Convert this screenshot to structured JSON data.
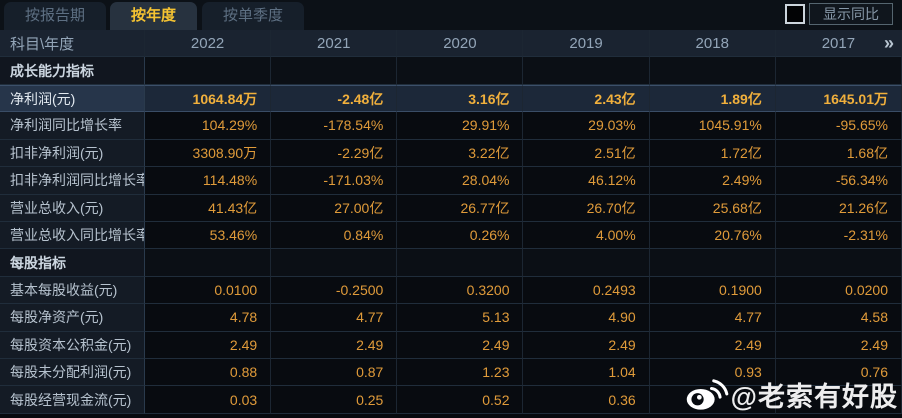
{
  "tabs": [
    {
      "label": "按报告期",
      "active": false
    },
    {
      "label": "按年度",
      "active": true
    },
    {
      "label": "按单季度",
      "active": false
    }
  ],
  "controls": {
    "show_yoy_label": "显示同比",
    "checkbox_checked": false
  },
  "table": {
    "corner_label": "科目\\年度",
    "years": [
      "2022",
      "2021",
      "2020",
      "2019",
      "2018",
      "2017"
    ],
    "more_years_icon": "»",
    "rows": [
      {
        "type": "section",
        "label": "成长能力指标"
      },
      {
        "type": "data",
        "highlight": true,
        "label": "净利润(元)",
        "values": [
          "1064.84万",
          "-2.48亿",
          "3.16亿",
          "2.43亿",
          "1.89亿",
          "1645.01万"
        ]
      },
      {
        "type": "data",
        "highlight": false,
        "label": "净利润同比增长率",
        "values": [
          "104.29%",
          "-178.54%",
          "29.91%",
          "29.03%",
          "1045.91%",
          "-95.65%"
        ]
      },
      {
        "type": "data",
        "highlight": false,
        "label": "扣非净利润(元)",
        "values": [
          "3308.90万",
          "-2.29亿",
          "3.22亿",
          "2.51亿",
          "1.72亿",
          "1.68亿"
        ]
      },
      {
        "type": "data",
        "highlight": false,
        "label": "扣非净利润同比增长率",
        "values": [
          "114.48%",
          "-171.03%",
          "28.04%",
          "46.12%",
          "2.49%",
          "-56.34%"
        ]
      },
      {
        "type": "data",
        "highlight": false,
        "label": "营业总收入(元)",
        "values": [
          "41.43亿",
          "27.00亿",
          "26.77亿",
          "26.70亿",
          "25.68亿",
          "21.26亿"
        ]
      },
      {
        "type": "data",
        "highlight": false,
        "label": "营业总收入同比增长率",
        "values": [
          "53.46%",
          "0.84%",
          "0.26%",
          "4.00%",
          "20.76%",
          "-2.31%"
        ]
      },
      {
        "type": "section",
        "label": "每股指标"
      },
      {
        "type": "data",
        "highlight": false,
        "label": "基本每股收益(元)",
        "values": [
          "0.0100",
          "-0.2500",
          "0.3200",
          "0.2493",
          "0.1900",
          "0.0200"
        ]
      },
      {
        "type": "data",
        "highlight": false,
        "label": "每股净资产(元)",
        "values": [
          "4.78",
          "4.77",
          "5.13",
          "4.90",
          "4.77",
          "4.58"
        ]
      },
      {
        "type": "data",
        "highlight": false,
        "label": "每股资本公积金(元)",
        "values": [
          "2.49",
          "2.49",
          "2.49",
          "2.49",
          "2.49",
          "2.49"
        ]
      },
      {
        "type": "data",
        "highlight": false,
        "label": "每股未分配利润(元)",
        "values": [
          "0.88",
          "0.87",
          "1.23",
          "1.04",
          "0.93",
          "0.76"
        ]
      },
      {
        "type": "data",
        "highlight": false,
        "label": "每股经营现金流(元)",
        "values": [
          "0.03",
          "0.25",
          "0.52",
          "0.36",
          "",
          ""
        ]
      }
    ]
  },
  "watermark": {
    "text": "@老索有好股",
    "icon": "weibo-icon"
  },
  "colors": {
    "value_gold": "#e09b3a",
    "highlight_value_gold": "#f1b03c",
    "active_tab_text": "#f5c332",
    "highlight_row_bg": "#1c2839",
    "header_bg": "#1a2330",
    "label_cell_bg": "#141b25"
  }
}
